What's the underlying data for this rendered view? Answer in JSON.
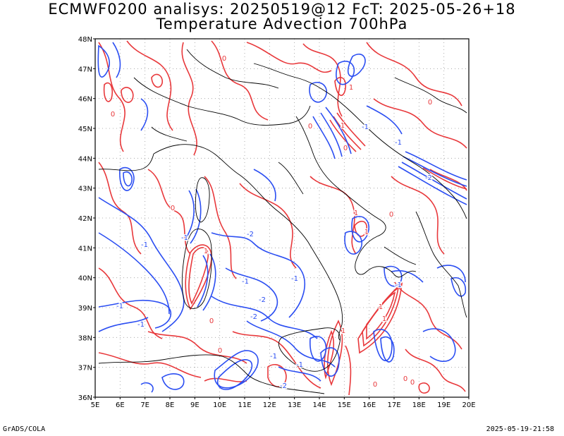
{
  "header": {
    "title_line1": "ECMWF0200 analisys: 20250519@12 FcT: 2025-05-26+18",
    "title_line2": "Temperature Advection 700hPa"
  },
  "footer": {
    "left": "GrADS/COLA",
    "right": "2025-05-19-21:58"
  },
  "map": {
    "lat_labels": [
      "48N",
      "47N",
      "46N",
      "45N",
      "44N",
      "43N",
      "42N",
      "41N",
      "40N",
      "39N",
      "38N",
      "37N",
      "36N"
    ],
    "lon_labels": [
      "5E",
      "6E",
      "7E",
      "8E",
      "9E",
      "10E",
      "11E",
      "12E",
      "13E",
      "14E",
      "15E",
      "16E",
      "17E",
      "18E",
      "19E",
      "20E"
    ],
    "colors": {
      "positive": "#e8383b",
      "negative": "#2b4ef2",
      "coast": "#000000",
      "grid": "#9a9a9a"
    },
    "contour_labels": [
      {
        "text": "-1",
        "c": "neg"
      },
      {
        "text": "-1",
        "c": "neg"
      },
      {
        "text": "-2",
        "c": "neg"
      },
      {
        "text": "-1",
        "c": "neg"
      },
      {
        "text": "-1",
        "c": "neg"
      },
      {
        "text": "-2",
        "c": "neg"
      },
      {
        "text": "-1",
        "c": "neg"
      },
      {
        "text": "-2",
        "c": "neg"
      },
      {
        "text": "-1",
        "c": "neg"
      },
      {
        "text": "-1",
        "c": "neg"
      },
      {
        "text": "-1",
        "c": "neg"
      },
      {
        "text": "-2",
        "c": "neg"
      },
      {
        "text": "-1",
        "c": "neg"
      },
      {
        "text": "-1",
        "c": "neg"
      },
      {
        "text": "-1",
        "c": "neg"
      },
      {
        "text": "-2",
        "c": "neg"
      },
      {
        "text": "0",
        "c": "pos"
      },
      {
        "text": "0",
        "c": "pos"
      },
      {
        "text": "0",
        "c": "pos"
      },
      {
        "text": "0",
        "c": "pos"
      },
      {
        "text": "0",
        "c": "pos"
      },
      {
        "text": "0",
        "c": "pos"
      },
      {
        "text": "0",
        "c": "pos"
      },
      {
        "text": "0",
        "c": "pos"
      },
      {
        "text": "0",
        "c": "pos"
      },
      {
        "text": "0",
        "c": "pos"
      },
      {
        "text": "0",
        "c": "pos"
      },
      {
        "text": "0",
        "c": "pos"
      },
      {
        "text": "1",
        "c": "pos"
      },
      {
        "text": "1",
        "c": "pos"
      },
      {
        "text": "1",
        "c": "pos"
      },
      {
        "text": "1",
        "c": "pos"
      },
      {
        "text": "1",
        "c": "pos"
      },
      {
        "text": "1",
        "c": "pos"
      },
      {
        "text": "1",
        "c": "pos"
      },
      {
        "text": "1",
        "c": "pos"
      }
    ]
  }
}
